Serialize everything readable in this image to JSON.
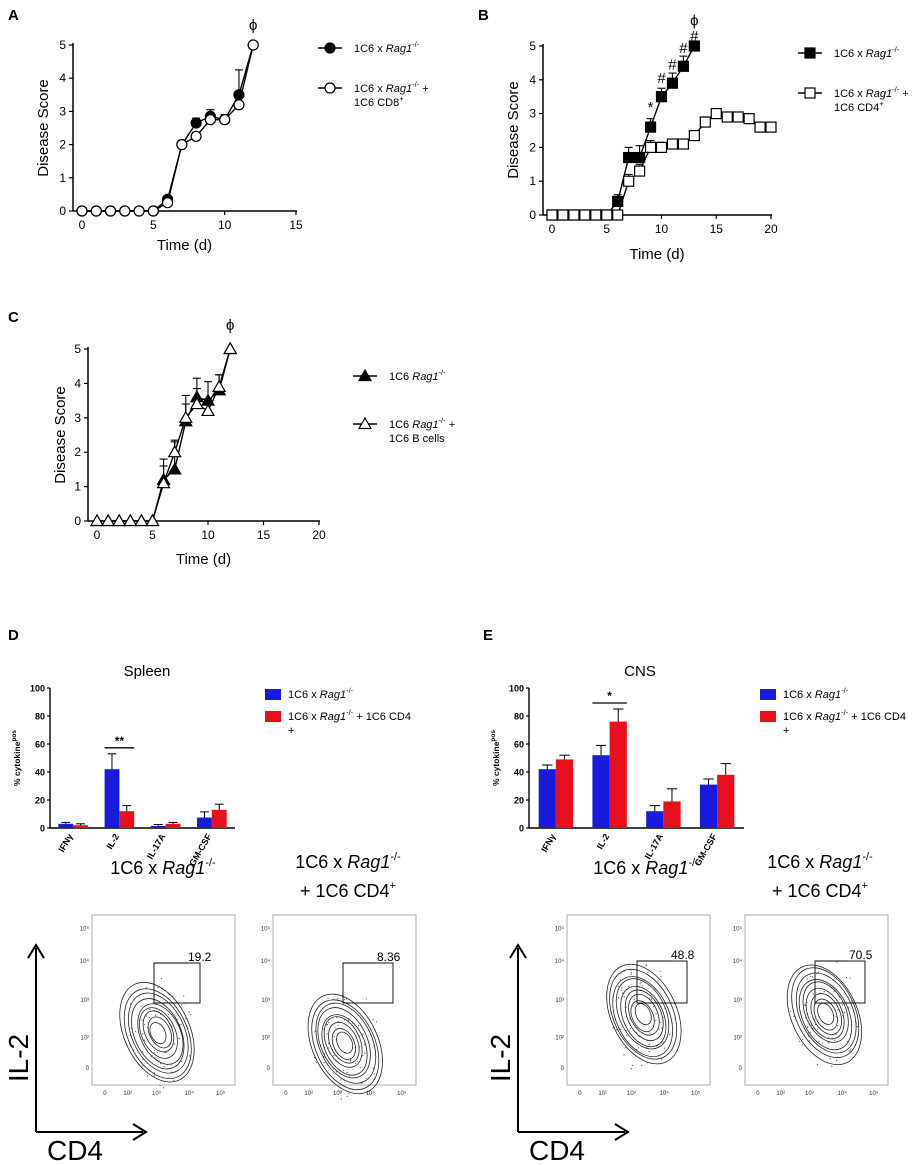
{
  "panel_letters": [
    "A",
    "B",
    "C",
    "D",
    "E"
  ],
  "chart_data": [
    {
      "panel": "A",
      "type": "line",
      "xlabel": "Time (d)",
      "ylabel": "Disease Score",
      "xlim": [
        0,
        15
      ],
      "ylim": [
        0,
        5
      ],
      "xticks": [
        "0",
        "5",
        "10",
        "15"
      ],
      "yticks": [
        "0",
        "1",
        "2",
        "3",
        "4",
        "5"
      ],
      "annotations": [
        {
          "text": "ϕ",
          "x": 12,
          "y": 5.45
        }
      ],
      "series": [
        {
          "name": "1C6 x Rag1-/-",
          "legend": [
            "1C6 x ",
            "Rag1",
            "-/-"
          ],
          "marker": "circle",
          "fill": "filled",
          "x": [
            0,
            1,
            2,
            3,
            4,
            5,
            6,
            7,
            8,
            9,
            10,
            11,
            12
          ],
          "y": [
            0,
            0,
            0,
            0,
            0,
            0,
            0.35,
            2.0,
            2.65,
            2.85,
            2.75,
            3.5,
            5.0
          ],
          "err": [
            0,
            0,
            0,
            0,
            0,
            0,
            0.1,
            0.08,
            0.15,
            0.2,
            0.15,
            0.75,
            0
          ]
        },
        {
          "name": "1C6 x Rag1-/- + 1C6 CD8+",
          "legend": [
            "1C6 x ",
            "Rag1",
            "-/-",
            " +",
            "1C6 CD8",
            "+"
          ],
          "marker": "circle",
          "fill": "open",
          "x": [
            0,
            1,
            2,
            3,
            4,
            5,
            6,
            7,
            8,
            9,
            10,
            11,
            12
          ],
          "y": [
            0,
            0,
            0,
            0,
            0,
            0,
            0.25,
            2.0,
            2.25,
            2.75,
            2.75,
            3.2,
            5.0
          ],
          "err": [
            0,
            0,
            0,
            0,
            0,
            0,
            0.1,
            0.08,
            0.12,
            0.15,
            0.15,
            0.2,
            0
          ]
        }
      ]
    },
    {
      "panel": "B",
      "type": "line",
      "xlabel": "Time (d)",
      "ylabel": "Disease Score",
      "xlim": [
        0,
        20
      ],
      "ylim": [
        0,
        5
      ],
      "xticks": [
        "0",
        "5",
        "10",
        "15",
        "20"
      ],
      "yticks": [
        "0",
        "1",
        "2",
        "3",
        "4",
        "5"
      ],
      "annotations": [
        {
          "text": "ϕ",
          "x": 13,
          "y": 5.6
        },
        {
          "text": "#",
          "x": 13,
          "y": 5.15
        },
        {
          "text": "#",
          "x": 12,
          "y": 4.8
        },
        {
          "text": "#",
          "x": 11,
          "y": 4.3
        },
        {
          "text": "#",
          "x": 10,
          "y": 3.9
        },
        {
          "text": "*",
          "x": 9,
          "y": 3.05
        }
      ],
      "series": [
        {
          "name": "1C6 x Rag1-/-",
          "legend": [
            "1C6 x ",
            "Rag1",
            "-/-"
          ],
          "marker": "square",
          "fill": "filled",
          "x": [
            0,
            1,
            2,
            3,
            4,
            5,
            6,
            7,
            8,
            9,
            10,
            11,
            12,
            13
          ],
          "y": [
            0,
            0,
            0,
            0,
            0,
            0,
            0.4,
            1.7,
            1.7,
            2.6,
            3.5,
            3.9,
            4.4,
            5.0
          ],
          "err": [
            0,
            0,
            0,
            0,
            0,
            0,
            0.2,
            0.3,
            0.35,
            0.25,
            0.25,
            0.3,
            0.3,
            0
          ]
        },
        {
          "name": "1C6 x Rag1-/- + 1C6 CD4+",
          "legend": [
            "1C6 x ",
            "Rag1",
            "-/-",
            " +",
            "1C6 CD4",
            "+"
          ],
          "marker": "square",
          "fill": "open",
          "x": [
            0,
            1,
            2,
            3,
            4,
            5,
            6,
            7,
            8,
            9,
            10,
            11,
            12,
            13,
            14,
            15,
            16,
            17,
            18,
            19,
            20
          ],
          "y": [
            0,
            0,
            0,
            0,
            0,
            0,
            0,
            1.0,
            1.3,
            2.0,
            2.0,
            2.1,
            2.1,
            2.35,
            2.75,
            3.0,
            2.9,
            2.9,
            2.85,
            2.6,
            2.6
          ],
          "err": [
            0,
            0,
            0,
            0,
            0,
            0,
            0,
            0.2,
            0.2,
            0.2,
            0.15,
            0.1,
            0.1,
            0.12,
            0.15,
            0.1,
            0.08,
            0.08,
            0.12,
            0.1,
            0.1
          ]
        }
      ]
    },
    {
      "panel": "C",
      "type": "line",
      "xlabel": "Time (d)",
      "ylabel": "Disease Score",
      "xlim": [
        0,
        20
      ],
      "ylim": [
        0,
        5
      ],
      "xticks": [
        "0",
        "5",
        "10",
        "15",
        "20"
      ],
      "yticks": [
        "0",
        "1",
        "2",
        "3",
        "4",
        "5"
      ],
      "annotations": [
        {
          "text": "ϕ",
          "x": 12,
          "y": 5.55
        }
      ],
      "series": [
        {
          "name": "1C6 Rag1-/-",
          "legend": [
            "1C6 ",
            "Rag1",
            "-/-"
          ],
          "marker": "triangle",
          "fill": "filled",
          "x": [
            0,
            1,
            2,
            3,
            4,
            5,
            6,
            7,
            8,
            9,
            10,
            11,
            12
          ],
          "y": [
            0,
            0,
            0,
            0,
            0,
            0,
            1.2,
            1.5,
            2.9,
            3.6,
            3.5,
            3.8,
            5.0
          ],
          "err": [
            0,
            0,
            0,
            0,
            0,
            0,
            0.6,
            0.8,
            0.75,
            0.55,
            0.55,
            0.45,
            0
          ]
        },
        {
          "name": "1C6 Rag1-/- + 1C6 B cells",
          "legend": [
            "1C6 ",
            "Rag1",
            "-/-",
            " +",
            "1C6 B cells",
            ""
          ],
          "marker": "triangle",
          "fill": "open",
          "x": [
            0,
            1,
            2,
            3,
            4,
            5,
            6,
            7,
            8,
            9,
            10,
            11,
            12
          ],
          "y": [
            0,
            0,
            0,
            0,
            0,
            0,
            1.1,
            2.0,
            3.0,
            3.4,
            3.2,
            3.9,
            5.0
          ],
          "err": [
            0,
            0,
            0,
            0,
            0,
            0,
            0.5,
            0.35,
            0.4,
            0.45,
            0.35,
            0.35,
            0
          ]
        }
      ]
    },
    {
      "panel": "D",
      "type": "bar",
      "title": "Spleen",
      "ylabel": "% cytokine",
      "ylabel_sup": "pos",
      "ylim": [
        0,
        100
      ],
      "yticks": [
        "0",
        "20",
        "40",
        "60",
        "80",
        "100"
      ],
      "categories": [
        "IFNγ",
        "IL-2",
        "IL-17A",
        "GM-CSF"
      ],
      "series": [
        {
          "name": "1C6 x Rag1-/-",
          "legend": [
            "1C6 x ",
            "Rag1",
            "-/-",
            ""
          ],
          "color": "#1a1adc",
          "values": [
            3,
            42,
            1.5,
            7.5
          ],
          "err": [
            1,
            11,
            1,
            4
          ]
        },
        {
          "name": "1C6 x Rag1-/- + 1C6 CD4+",
          "legend": [
            "1C6 x ",
            "Rag1",
            "-/-",
            " + 1C6 CD4",
            "+"
          ],
          "color": "#e8101a",
          "values": [
            2,
            12,
            3,
            13
          ],
          "err": [
            1,
            4,
            1,
            4
          ]
        }
      ],
      "significance": [
        {
          "category": "IL-2",
          "text": "**"
        }
      ]
    },
    {
      "panel": "E",
      "type": "bar",
      "title": "CNS",
      "ylabel": "% cytokine",
      "ylabel_sup": "pos",
      "ylim": [
        0,
        100
      ],
      "yticks": [
        "0",
        "20",
        "40",
        "60",
        "80",
        "100"
      ],
      "categories": [
        "IFNγ",
        "IL-2",
        "IL-17A",
        "GM-CSF"
      ],
      "series": [
        {
          "name": "1C6 x Rag1-/-",
          "legend": [
            "1C6 x ",
            "Rag1",
            "-/-",
            ""
          ],
          "color": "#1a1adc",
          "values": [
            42,
            52,
            12,
            31
          ],
          "err": [
            3,
            7,
            4,
            4
          ]
        },
        {
          "name": "1C6 x Rag1-/- + 1C6 CD4+",
          "legend": [
            "1C6 x ",
            "Rag1",
            "-/-",
            " + 1C6 CD4",
            "+"
          ],
          "color": "#e8101a",
          "values": [
            49,
            76,
            19,
            38
          ],
          "err": [
            3,
            9,
            9,
            8
          ]
        }
      ],
      "significance": [
        {
          "category": "IL-2",
          "text": "*"
        }
      ]
    }
  ],
  "flow": {
    "ticks": [
      "0",
      "10²",
      "10³",
      "10⁴",
      "10⁵"
    ],
    "ytick_labels": [
      "10⁵",
      "10⁴",
      "10³",
      "10²",
      "0"
    ],
    "x_axis": "CD4",
    "y_axis": "IL-2",
    "plots": [
      {
        "group": "D",
        "title": [
          "1C6 x ",
          "Rag1",
          "-/-"
        ],
        "subtitle": "",
        "gate_percent": 19.2
      },
      {
        "group": "D",
        "title": [
          "1C6 x ",
          "Rag1",
          "-/-"
        ],
        "subtitle": "+ 1C6 CD4",
        "subtitle_sup": "+",
        "gate_percent": 8.36
      },
      {
        "group": "E",
        "title": [
          "1C6 x ",
          "Rag1",
          "-/-"
        ],
        "subtitle": "",
        "gate_percent": 48.8
      },
      {
        "group": "E",
        "title": [
          "1C6 x ",
          "Rag1",
          "-/-"
        ],
        "subtitle": "+ 1C6 CD4",
        "subtitle_sup": "+",
        "gate_percent": 70.5
      }
    ]
  }
}
